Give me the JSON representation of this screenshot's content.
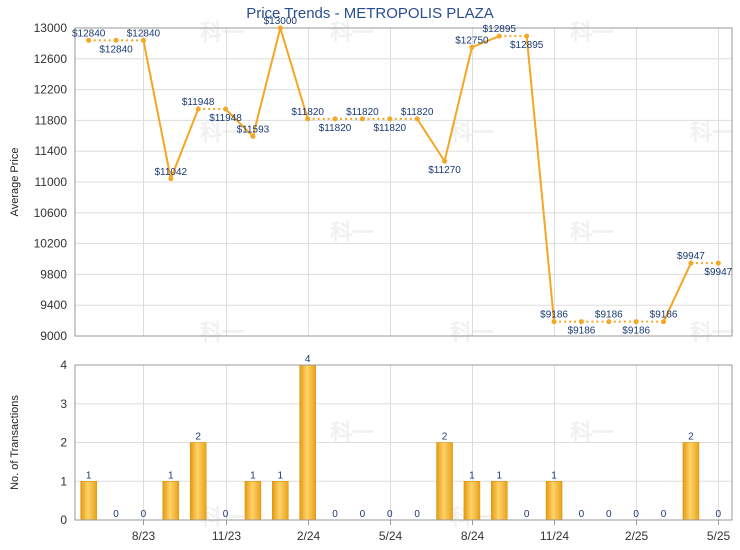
{
  "chart_data": [
    {
      "type": "line",
      "title": "Price Trends - METROPOLIS PLAZA",
      "xlabel": "",
      "ylabel": "Average Price",
      "ylim": [
        9000,
        13000
      ],
      "yticks": [
        9000,
        9400,
        9800,
        10200,
        10600,
        11000,
        11400,
        11800,
        12200,
        12600,
        13000
      ],
      "grid": true,
      "color": "#f5a623",
      "points": [
        {
          "index": 0,
          "value": 12840,
          "label": "$12840",
          "pos": "above"
        },
        {
          "index": 1,
          "value": 12840,
          "label": "$12840",
          "pos": "below"
        },
        {
          "index": 2,
          "value": 12840,
          "label": "$12840",
          "pos": "above"
        },
        {
          "index": 3,
          "value": 11042,
          "label": "$11042",
          "pos": "above"
        },
        {
          "index": 4,
          "value": 11948,
          "label": "$11948",
          "pos": "above"
        },
        {
          "index": 5,
          "value": 11948,
          "label": "$11948",
          "pos": "below"
        },
        {
          "index": 6,
          "value": 11593,
          "label": "$11593",
          "pos": "above"
        },
        {
          "index": 7,
          "value": 13000,
          "label": "$13000",
          "pos": "above"
        },
        {
          "index": 8,
          "value": 11820,
          "label": "$11820",
          "pos": "above"
        },
        {
          "index": 9,
          "value": 11820,
          "label": "$11820",
          "pos": "below"
        },
        {
          "index": 10,
          "value": 11820,
          "label": "$11820",
          "pos": "above"
        },
        {
          "index": 11,
          "value": 11820,
          "label": "$11820",
          "pos": "below"
        },
        {
          "index": 12,
          "value": 11820,
          "label": "$11820",
          "pos": "above"
        },
        {
          "index": 13,
          "value": 11270,
          "label": "$11270",
          "pos": "below"
        },
        {
          "index": 14,
          "value": 12750,
          "label": "$12750",
          "pos": "above"
        },
        {
          "index": 15,
          "value": 12895,
          "label": "$12895",
          "pos": "above"
        },
        {
          "index": 16,
          "value": 12895,
          "label": "$12895",
          "pos": "below"
        },
        {
          "index": 17,
          "value": 9186,
          "label": "$9186",
          "pos": "above"
        },
        {
          "index": 18,
          "value": 9186,
          "label": "$9186",
          "pos": "below"
        },
        {
          "index": 19,
          "value": 9186,
          "label": "$9186",
          "pos": "above"
        },
        {
          "index": 20,
          "value": 9186,
          "label": "$9186",
          "pos": "below"
        },
        {
          "index": 21,
          "value": 9186,
          "label": "$9186",
          "pos": "above"
        },
        {
          "index": 22,
          "value": 9947,
          "label": "$9947",
          "pos": "above"
        },
        {
          "index": 23,
          "value": 9947,
          "label": "$9947",
          "pos": "below"
        }
      ]
    },
    {
      "type": "bar",
      "xlabel": "",
      "ylabel": "No. of Transactions",
      "ylim": [
        0,
        4
      ],
      "yticks": [
        0,
        1,
        2,
        3,
        4
      ],
      "grid": true,
      "color": "#f0a818",
      "values": [
        1,
        0,
        0,
        1,
        2,
        0,
        1,
        1,
        4,
        0,
        0,
        0,
        0,
        2,
        1,
        1,
        0,
        1,
        0,
        0,
        0,
        0,
        2,
        0
      ]
    }
  ],
  "x_axis": {
    "count": 24,
    "tick_labels": [
      {
        "index": 2,
        "label": "8/23"
      },
      {
        "index": 5,
        "label": "11/23"
      },
      {
        "index": 8,
        "label": "2/24"
      },
      {
        "index": 11,
        "label": "5/24"
      },
      {
        "index": 14,
        "label": "8/24"
      },
      {
        "index": 17,
        "label": "11/24"
      },
      {
        "index": 20,
        "label": "2/25"
      },
      {
        "index": 23,
        "label": "5/25"
      }
    ]
  },
  "watermark_text": "科一"
}
